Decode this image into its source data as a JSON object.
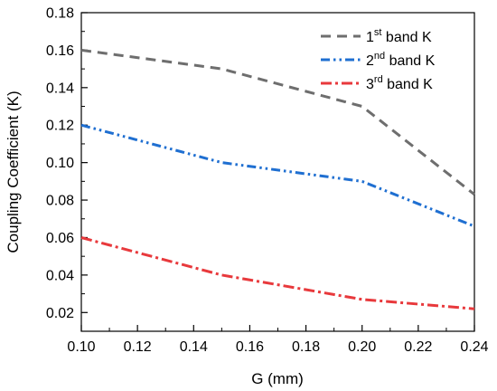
{
  "chart_data": {
    "type": "line",
    "xlabel": "G (mm)",
    "ylabel": "Coupling Coefficient (K)",
    "xlim": [
      0.1,
      0.24
    ],
    "ylim": [
      0.01,
      0.18
    ],
    "xticks": [
      "0.10",
      "0.12",
      "0.14",
      "0.16",
      "0.18",
      "0.20",
      "0.22",
      "0.24"
    ],
    "yticks": [
      "0.02",
      "0.04",
      "0.06",
      "0.08",
      "0.10",
      "0.12",
      "0.14",
      "0.16",
      "0.18"
    ],
    "grid": false,
    "legend_position": "top-right",
    "x": [
      0.1,
      0.15,
      0.2,
      0.24
    ],
    "series": [
      {
        "name_base": "1",
        "name_sup": "st",
        "name_rest": " band K",
        "color": "#6e6e6e",
        "dash": "dash",
        "values": [
          0.16,
          0.15,
          0.13,
          0.083
        ]
      },
      {
        "name_base": "2",
        "name_sup": "nd",
        "name_rest": " band K",
        "color": "#1f6fd1",
        "dash": "dash-dot-dot",
        "values": [
          0.12,
          0.1,
          0.09,
          0.066
        ]
      },
      {
        "name_base": "3",
        "name_sup": "rd",
        "name_rest": " band K",
        "color": "#e8393c",
        "dash": "dash-dot",
        "values": [
          0.06,
          0.04,
          0.027,
          0.022
        ]
      }
    ]
  }
}
